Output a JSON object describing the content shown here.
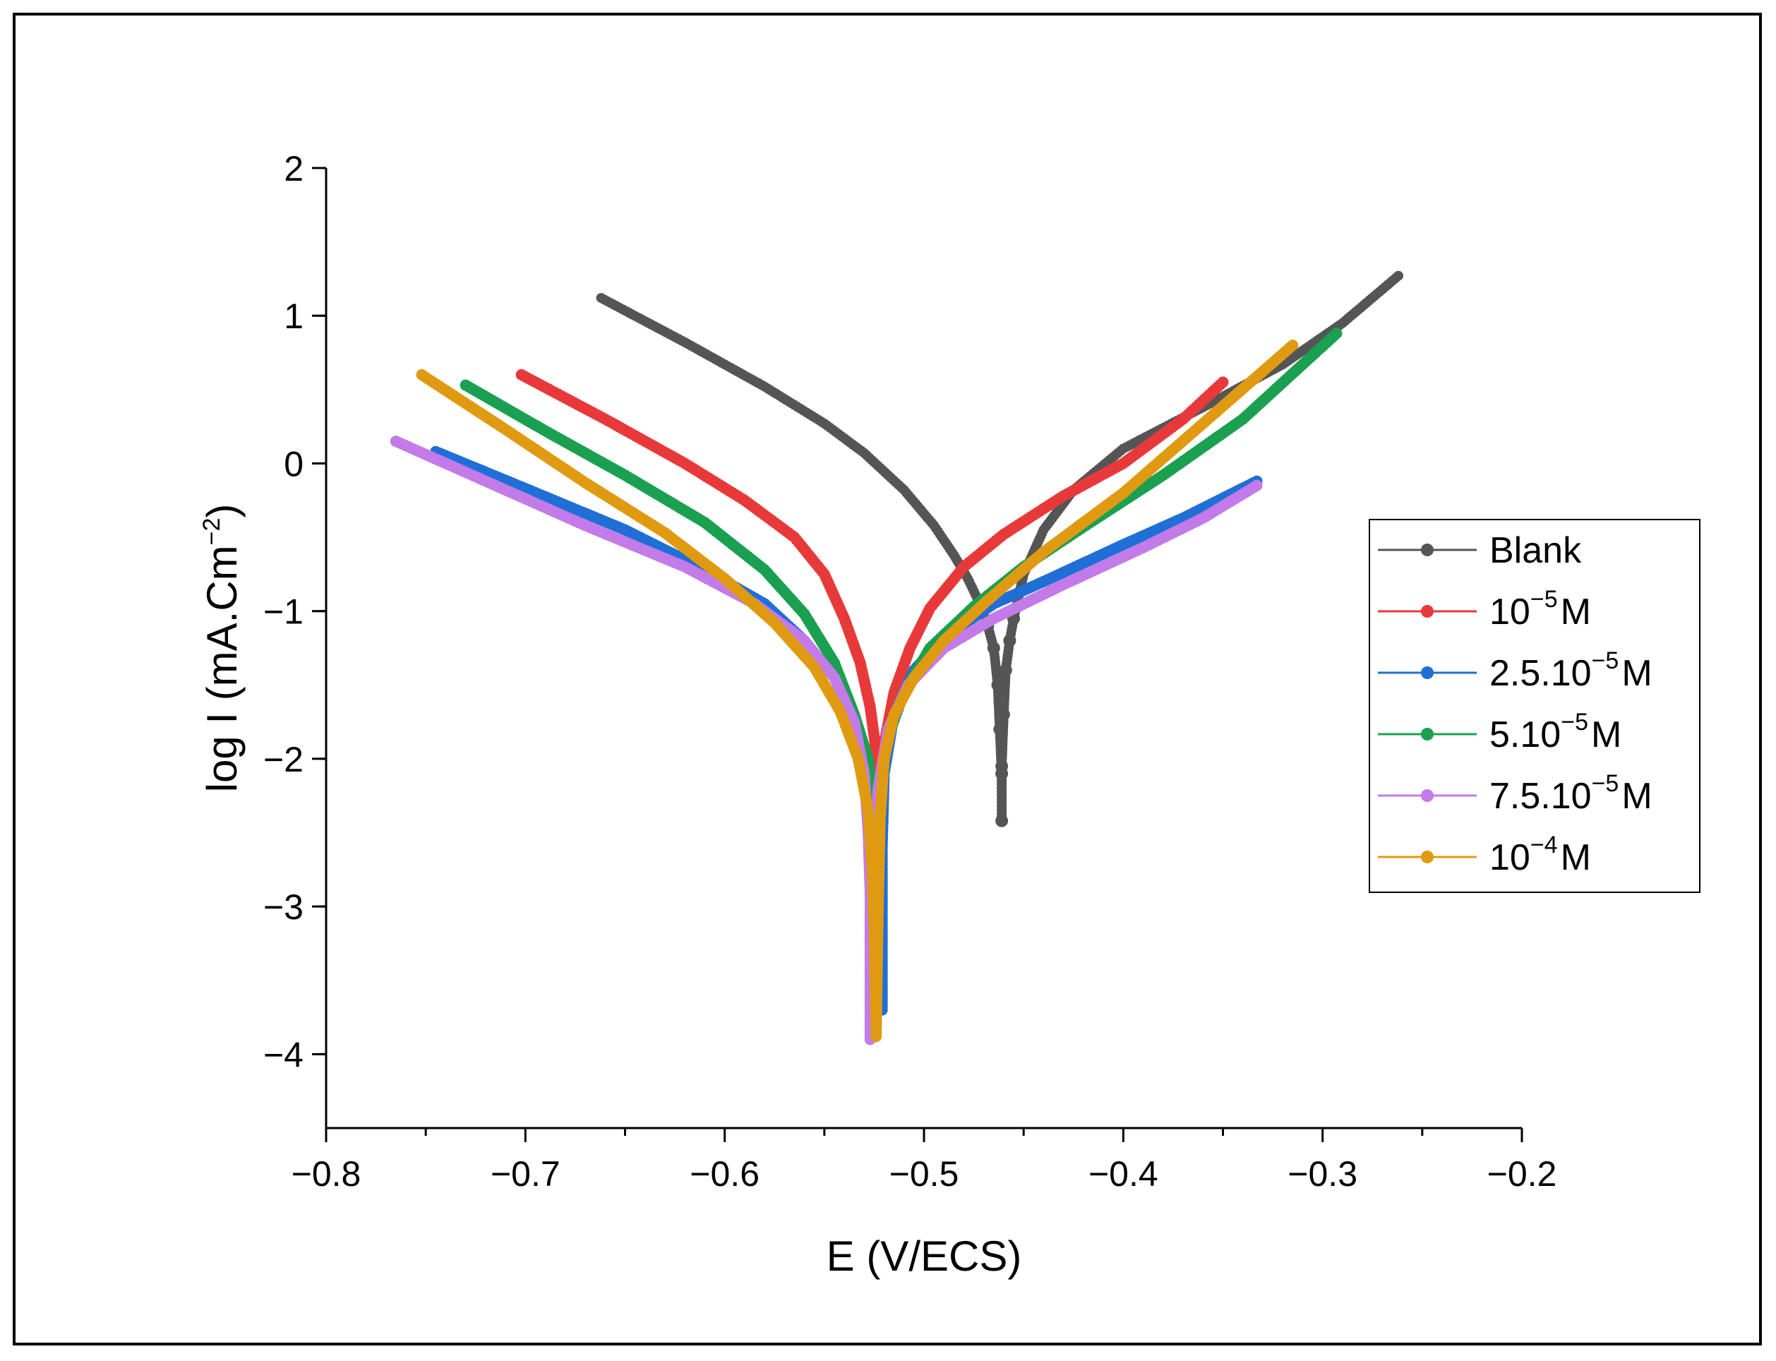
{
  "chart_data": {
    "type": "line",
    "xlabel": "E (V/ECS)",
    "ylabel": {
      "main": "log I (mA.Cm",
      "sup": "−2",
      "close": ")"
    },
    "xlim": [
      -0.8,
      -0.2
    ],
    "ylim": [
      -4.5,
      2
    ],
    "x_ticks": [
      -0.8,
      -0.7,
      -0.6,
      -0.5,
      -0.4,
      -0.3,
      -0.2
    ],
    "x_tick_labels": [
      "−0.8",
      "−0.7",
      "−0.6",
      "−0.5",
      "−0.4",
      "−0.3",
      "−0.2"
    ],
    "y_ticks": [
      2,
      1,
      0,
      -1,
      -2,
      -3,
      -4
    ],
    "y_tick_labels": [
      "2",
      "1",
      "0",
      "−1",
      "−2",
      "−3",
      "−4"
    ],
    "legend_position": "right",
    "series": [
      {
        "name": "Blank",
        "label": {
          "pre": "Blank",
          "sup": "",
          "post": ""
        },
        "color": "#555555",
        "points": [
          [
            -0.662,
            1.12
          ],
          [
            -0.62,
            0.82
          ],
          [
            -0.58,
            0.52
          ],
          [
            -0.55,
            0.27
          ],
          [
            -0.53,
            0.07
          ],
          [
            -0.51,
            -0.18
          ],
          [
            -0.495,
            -0.42
          ],
          [
            -0.485,
            -0.62
          ],
          [
            -0.478,
            -0.78
          ],
          [
            -0.472,
            -0.95
          ],
          [
            -0.468,
            -1.1
          ],
          [
            -0.465,
            -1.25
          ],
          [
            -0.463,
            -1.5
          ],
          [
            -0.462,
            -1.8
          ],
          [
            -0.461,
            -2.1
          ],
          [
            -0.461,
            -2.42
          ],
          [
            -0.461,
            -2.05
          ],
          [
            -0.46,
            -1.7
          ],
          [
            -0.459,
            -1.4
          ],
          [
            -0.457,
            -1.2
          ],
          [
            -0.455,
            -1.05
          ],
          [
            -0.45,
            -0.75
          ],
          [
            -0.44,
            -0.45
          ],
          [
            -0.425,
            -0.18
          ],
          [
            -0.4,
            0.1
          ],
          [
            -0.36,
            0.38
          ],
          [
            -0.32,
            0.67
          ],
          [
            -0.29,
            0.95
          ],
          [
            -0.262,
            1.27
          ]
        ]
      },
      {
        "name": "10^-5 M",
        "label": {
          "pre": "10",
          "sup": "−5",
          "post": "M"
        },
        "color": "#e8393a",
        "points": [
          [
            -0.702,
            0.6
          ],
          [
            -0.66,
            0.3
          ],
          [
            -0.62,
            0.0
          ],
          [
            -0.59,
            -0.25
          ],
          [
            -0.565,
            -0.5
          ],
          [
            -0.55,
            -0.75
          ],
          [
            -0.54,
            -1.05
          ],
          [
            -0.532,
            -1.35
          ],
          [
            -0.527,
            -1.65
          ],
          [
            -0.524,
            -1.95
          ],
          [
            -0.523,
            -2.2
          ],
          [
            -0.52,
            -1.9
          ],
          [
            -0.515,
            -1.55
          ],
          [
            -0.507,
            -1.25
          ],
          [
            -0.497,
            -0.98
          ],
          [
            -0.48,
            -0.7
          ],
          [
            -0.46,
            -0.48
          ],
          [
            -0.43,
            -0.22
          ],
          [
            -0.4,
            0.0
          ],
          [
            -0.37,
            0.3
          ],
          [
            -0.35,
            0.55
          ]
        ]
      },
      {
        "name": "2.5.10^-5 M",
        "label": {
          "pre": "2.5.10",
          "sup": "−5",
          "post": "M"
        },
        "color": "#1f6fd6",
        "points": [
          [
            -0.745,
            0.08
          ],
          [
            -0.7,
            -0.17
          ],
          [
            -0.65,
            -0.45
          ],
          [
            -0.61,
            -0.72
          ],
          [
            -0.58,
            -0.95
          ],
          [
            -0.56,
            -1.2
          ],
          [
            -0.545,
            -1.45
          ],
          [
            -0.535,
            -1.75
          ],
          [
            -0.528,
            -2.05
          ],
          [
            -0.525,
            -2.4
          ],
          [
            -0.523,
            -2.8
          ],
          [
            -0.522,
            -3.2
          ],
          [
            -0.521,
            -3.7
          ],
          [
            -0.521,
            -3.2
          ],
          [
            -0.521,
            -2.6
          ],
          [
            -0.52,
            -2.1
          ],
          [
            -0.515,
            -1.7
          ],
          [
            -0.505,
            -1.4
          ],
          [
            -0.49,
            -1.18
          ],
          [
            -0.465,
            -0.95
          ],
          [
            -0.44,
            -0.8
          ],
          [
            -0.4,
            -0.55
          ],
          [
            -0.37,
            -0.37
          ],
          [
            -0.333,
            -0.12
          ]
        ]
      },
      {
        "name": "5.10^-5 M",
        "label": {
          "pre": "5.10",
          "sup": "−5",
          "post": "M"
        },
        "color": "#1aa050",
        "points": [
          [
            -0.73,
            0.53
          ],
          [
            -0.69,
            0.22
          ],
          [
            -0.65,
            -0.08
          ],
          [
            -0.61,
            -0.4
          ],
          [
            -0.58,
            -0.72
          ],
          [
            -0.56,
            -1.02
          ],
          [
            -0.545,
            -1.35
          ],
          [
            -0.535,
            -1.7
          ],
          [
            -0.528,
            -2.0
          ],
          [
            -0.526,
            -2.4
          ],
          [
            -0.525,
            -2.9
          ],
          [
            -0.526,
            -3.15
          ],
          [
            -0.524,
            -2.6
          ],
          [
            -0.522,
            -2.2
          ],
          [
            -0.518,
            -1.85
          ],
          [
            -0.51,
            -1.55
          ],
          [
            -0.497,
            -1.25
          ],
          [
            -0.475,
            -0.97
          ],
          [
            -0.45,
            -0.7
          ],
          [
            -0.42,
            -0.43
          ],
          [
            -0.38,
            -0.08
          ],
          [
            -0.34,
            0.3
          ],
          [
            -0.293,
            0.88
          ]
        ]
      },
      {
        "name": "7.5.10^-5 M",
        "label": {
          "pre": "7.5.10",
          "sup": "−5",
          "post": "M"
        },
        "color": "#c27be8",
        "points": [
          [
            -0.765,
            0.15
          ],
          [
            -0.72,
            -0.12
          ],
          [
            -0.67,
            -0.42
          ],
          [
            -0.62,
            -0.7
          ],
          [
            -0.585,
            -0.95
          ],
          [
            -0.56,
            -1.2
          ],
          [
            -0.545,
            -1.45
          ],
          [
            -0.535,
            -1.75
          ],
          [
            -0.53,
            -2.1
          ],
          [
            -0.528,
            -2.5
          ],
          [
            -0.527,
            -2.9
          ],
          [
            -0.527,
            -3.3
          ],
          [
            -0.527,
            -3.9
          ],
          [
            -0.526,
            -3.3
          ],
          [
            -0.525,
            -2.7
          ],
          [
            -0.523,
            -2.2
          ],
          [
            -0.518,
            -1.8
          ],
          [
            -0.508,
            -1.5
          ],
          [
            -0.49,
            -1.25
          ],
          [
            -0.465,
            -1.05
          ],
          [
            -0.43,
            -0.82
          ],
          [
            -0.39,
            -0.57
          ],
          [
            -0.36,
            -0.37
          ],
          [
            -0.333,
            -0.15
          ]
        ]
      },
      {
        "name": "10^-4 M",
        "label": {
          "pre": "10",
          "sup": "−4",
          "post": "M"
        },
        "color": "#e09a12",
        "points": [
          [
            -0.752,
            0.6
          ],
          [
            -0.71,
            0.23
          ],
          [
            -0.67,
            -0.13
          ],
          [
            -0.63,
            -0.47
          ],
          [
            -0.6,
            -0.78
          ],
          [
            -0.575,
            -1.08
          ],
          [
            -0.555,
            -1.38
          ],
          [
            -0.542,
            -1.68
          ],
          [
            -0.533,
            -2.0
          ],
          [
            -0.528,
            -2.35
          ],
          [
            -0.526,
            -2.75
          ],
          [
            -0.525,
            -3.15
          ],
          [
            -0.524,
            -3.88
          ],
          [
            -0.523,
            -3.0
          ],
          [
            -0.522,
            -2.4
          ],
          [
            -0.52,
            -2.0
          ],
          [
            -0.515,
            -1.7
          ],
          [
            -0.505,
            -1.45
          ],
          [
            -0.49,
            -1.2
          ],
          [
            -0.47,
            -0.95
          ],
          [
            -0.44,
            -0.6
          ],
          [
            -0.4,
            -0.2
          ],
          [
            -0.36,
            0.27
          ],
          [
            -0.315,
            0.8
          ]
        ]
      }
    ]
  }
}
